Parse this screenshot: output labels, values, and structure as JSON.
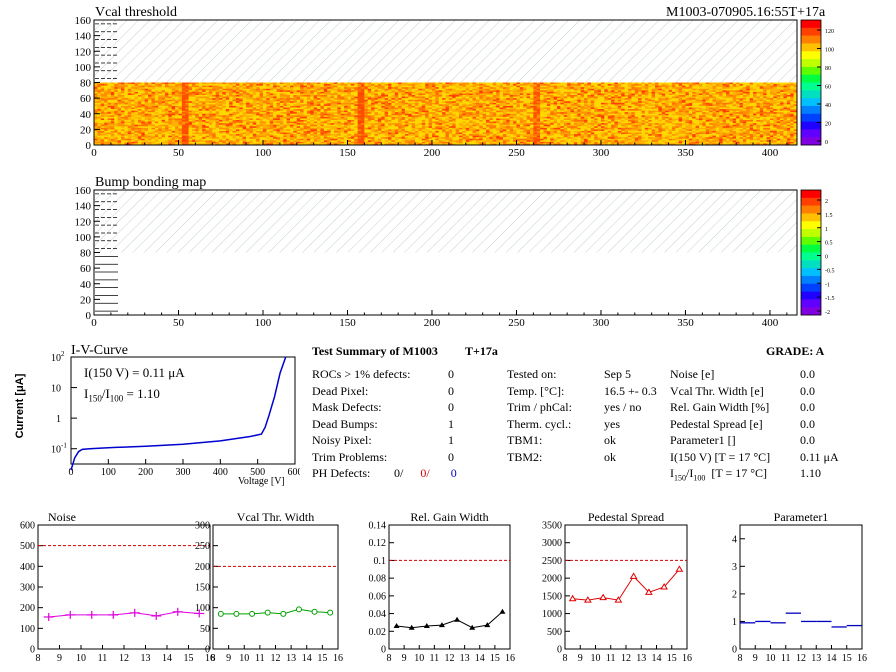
{
  "header": {
    "title": "Vcal threshold",
    "module_id": "M1003-070905.16:55T+17a"
  },
  "map1": {
    "title": "Vcal threshold",
    "x_ticks": [
      0,
      50,
      100,
      150,
      200,
      250,
      300,
      350,
      400
    ],
    "y_ticks": [
      0,
      20,
      40,
      60,
      80,
      100,
      120,
      140,
      160
    ],
    "x_range": [
      0,
      416
    ],
    "y_range": [
      0,
      160
    ],
    "palette_ticks": [
      "120",
      "100",
      "80",
      "60",
      "40",
      "20",
      "0"
    ]
  },
  "map2": {
    "title": "Bump bonding map",
    "x_ticks": [
      0,
      50,
      100,
      150,
      200,
      250,
      300,
      350,
      400
    ],
    "y_ticks": [
      0,
      20,
      40,
      60,
      80,
      100,
      120,
      140,
      160
    ],
    "x_range": [
      0,
      416
    ],
    "y_range": [
      0,
      160
    ],
    "palette_ticks": [
      "2",
      "1.5",
      "1",
      "0.5",
      "0",
      "-0.5",
      "-1",
      "-1.5",
      "-2"
    ]
  },
  "iv": {
    "title": "I-V-Curve",
    "i150": "I(150 V) = 0.11 μA",
    "ratio_label": "I",
    "ratio_sub1": "150",
    "ratio_sep": "/I",
    "ratio_sub2": "100",
    "ratio_value": "=  1.10",
    "ylabel": "Current [μA]",
    "xlabel": "Voltage [V]",
    "x_ticks": [
      "0",
      "100",
      "200",
      "300",
      "400",
      "500",
      "600"
    ],
    "y_ticks": [
      "10^-1",
      "1",
      "10",
      "10^2"
    ]
  },
  "summary": {
    "title": "Test Summary of M1003",
    "temp_tag": "T+17a",
    "grade_label": "GRADE:  A",
    "left": [
      {
        "label": "ROCs > 1% defects:",
        "value": "0"
      },
      {
        "label": "Dead Pixel:",
        "value": "0"
      },
      {
        "label": "Mask Defects:",
        "value": "0"
      },
      {
        "label": "Dead Bumps:",
        "value": "1"
      },
      {
        "label": "Noisy Pixel:",
        "value": "1"
      },
      {
        "label": "Trim Problems:",
        "value": "0"
      }
    ],
    "ph_label": "PH Defects:",
    "ph_values": [
      "0/",
      "0/",
      "0"
    ],
    "mid": [
      {
        "label": "Tested on:",
        "value": "Sep 5"
      },
      {
        "label": "Temp. [°C]:",
        "value": "16.5 +- 0.3"
      },
      {
        "label": "Trim / phCal:",
        "value": "yes / no"
      },
      {
        "label": "Therm. cycl.:",
        "value": "yes"
      },
      {
        "label": "TBM1:",
        "value": "ok"
      },
      {
        "label": "TBM2:",
        "value": "ok"
      }
    ],
    "right": [
      {
        "label": "Noise [e]",
        "value": "0.0"
      },
      {
        "label": "Vcal Thr. Width [e]",
        "value": "0.0"
      },
      {
        "label": "Rel. Gain Width [%]",
        "value": "0.0"
      },
      {
        "label": "Pedestal Spread [e]",
        "value": "0.0"
      },
      {
        "label": "Parameter1 []",
        "value": "0.0"
      },
      {
        "label": "I(150 V) [T = 17 °C]",
        "value": "0.11 μA"
      }
    ],
    "ratio_row": {
      "prefix": "I",
      "sub1": "150",
      "sep": "/I",
      "sub2": "100",
      "suffix": "  [T = 17 °C]",
      "value": "1.10"
    }
  },
  "chart_data": [
    {
      "type": "line",
      "title": "Noise",
      "x": [
        8.5,
        9.5,
        10.5,
        11.5,
        12.5,
        13.5,
        14.5,
        15.5
      ],
      "values": [
        155,
        165,
        165,
        165,
        175,
        160,
        180,
        172
      ],
      "ylim": [
        0,
        600
      ],
      "y_ticks": [
        0,
        100,
        200,
        300,
        400,
        500,
        600
      ],
      "x_ticks": [
        8,
        9,
        10,
        11,
        12,
        13,
        14,
        15,
        16
      ],
      "xlim": [
        8,
        16
      ],
      "threshold": 500,
      "color": "#e000e0",
      "style": "cross"
    },
    {
      "type": "line",
      "title": "Vcal Thr. Width",
      "x": [
        8.5,
        9.5,
        10.5,
        11.5,
        12.5,
        13.5,
        14.5,
        15.5
      ],
      "values": [
        85,
        85,
        85,
        88,
        85,
        96,
        90,
        88
      ],
      "ylim": [
        0,
        300
      ],
      "y_ticks": [
        0,
        50,
        100,
        150,
        200,
        250,
        300
      ],
      "x_ticks": [
        8,
        9,
        10,
        11,
        12,
        13,
        14,
        15,
        16
      ],
      "xlim": [
        8,
        16
      ],
      "threshold": 200,
      "color": "#00a000",
      "style": "circle"
    },
    {
      "type": "line",
      "title": "Rel. Gain Width",
      "x": [
        8.5,
        9.5,
        10.5,
        11.5,
        12.5,
        13.5,
        14.5,
        15.5
      ],
      "values": [
        0.026,
        0.024,
        0.026,
        0.027,
        0.033,
        0.024,
        0.027,
        0.042
      ],
      "ylim": [
        0,
        0.14
      ],
      "y_ticks": [
        0,
        0.02,
        0.04,
        0.06,
        0.08,
        0.1,
        0.12,
        0.14
      ],
      "x_ticks": [
        8,
        9,
        10,
        11,
        12,
        13,
        14,
        15,
        16
      ],
      "xlim": [
        8,
        16
      ],
      "threshold": 0.1,
      "color": "#000000",
      "style": "triangle"
    },
    {
      "type": "line",
      "title": "Pedestal Spread",
      "x": [
        8.5,
        9.5,
        10.5,
        11.5,
        12.5,
        13.5,
        14.5,
        15.5
      ],
      "values": [
        1420,
        1380,
        1450,
        1380,
        2050,
        1600,
        1750,
        2250
      ],
      "ylim": [
        0,
        3500
      ],
      "y_ticks": [
        0,
        500,
        1000,
        1500,
        2000,
        2500,
        3000,
        3500
      ],
      "x_ticks": [
        8,
        9,
        10,
        11,
        12,
        13,
        14,
        15,
        16
      ],
      "xlim": [
        8,
        16
      ],
      "threshold": 2500,
      "color": "#e00000",
      "style": "triangle-open"
    },
    {
      "type": "scatter",
      "title": "Parameter1",
      "x": [
        8.5,
        9.5,
        10.5,
        11.5,
        12.5,
        13.5,
        14.5,
        15.5
      ],
      "values": [
        0.95,
        1.0,
        0.95,
        1.3,
        1.0,
        1.0,
        0.8,
        0.85
      ],
      "ylim": [
        0,
        4.5
      ],
      "y_ticks": [
        0,
        1,
        2,
        3,
        4
      ],
      "x_ticks": [
        8,
        9,
        10,
        11,
        12,
        13,
        14,
        15,
        16
      ],
      "xlim": [
        8,
        16
      ],
      "color": "#0000c0",
      "style": "hbar"
    }
  ],
  "iv_data": {
    "type": "line",
    "x": [
      0,
      10,
      20,
      30,
      50,
      80,
      120,
      200,
      300,
      400,
      480,
      510,
      520,
      530,
      545,
      560,
      575
    ],
    "values": [
      0.02,
      0.05,
      0.08,
      0.095,
      0.1,
      0.105,
      0.11,
      0.12,
      0.14,
      0.18,
      0.25,
      0.3,
      0.5,
      1.2,
      5,
      30,
      100
    ]
  }
}
